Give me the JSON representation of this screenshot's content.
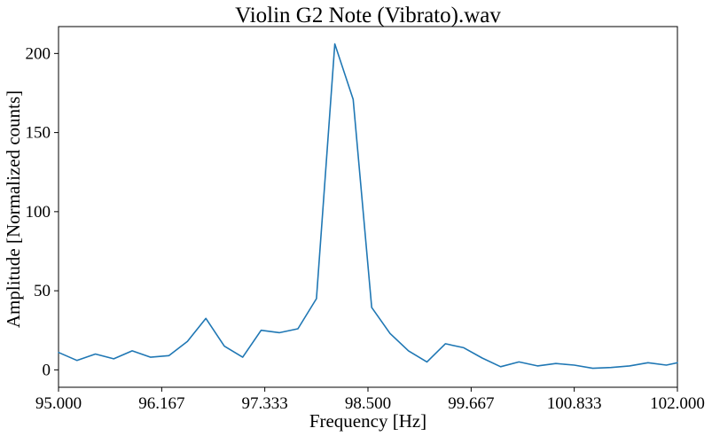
{
  "chart_data": {
    "type": "line",
    "title": "Violin G2 Note (Vibrato).wav",
    "xlabel": "Frequency [Hz]",
    "ylabel": "Amplitude [Normalized counts]",
    "xlim": [
      95.0,
      102.0
    ],
    "ylim": [
      -11,
      217
    ],
    "xticks": [
      95.0,
      96.167,
      97.333,
      98.5,
      99.667,
      100.833,
      102.0
    ],
    "xtick_labels": [
      "95.000",
      "96.167",
      "97.333",
      "98.500",
      "99.667",
      "100.833",
      "102.000"
    ],
    "yticks": [
      0,
      50,
      100,
      150,
      200
    ],
    "ytick_labels": [
      "0",
      "50",
      "100",
      "150",
      "200"
    ],
    "grid": false,
    "series": [
      {
        "color": "#1f77b4",
        "x": [
          95.0,
          95.208,
          95.417,
          95.625,
          95.833,
          96.042,
          96.25,
          96.458,
          96.667,
          96.875,
          97.083,
          97.292,
          97.5,
          97.708,
          97.917,
          98.125,
          98.333,
          98.542,
          98.75,
          98.958,
          99.167,
          99.375,
          99.583,
          99.792,
          100.0,
          100.208,
          100.417,
          100.625,
          100.833,
          101.042,
          101.25,
          101.458,
          101.667,
          101.875,
          102.0
        ],
        "y": [
          11,
          6,
          10,
          7,
          12,
          8,
          9,
          18,
          32.5,
          15,
          8,
          25,
          23.5,
          26,
          45,
          206,
          171,
          39.5,
          23,
          12,
          5,
          16.5,
          14,
          7.5,
          2,
          5,
          2.5,
          4,
          3,
          1,
          1.5,
          2.5,
          4.5,
          3,
          4.5
        ]
      }
    ]
  }
}
